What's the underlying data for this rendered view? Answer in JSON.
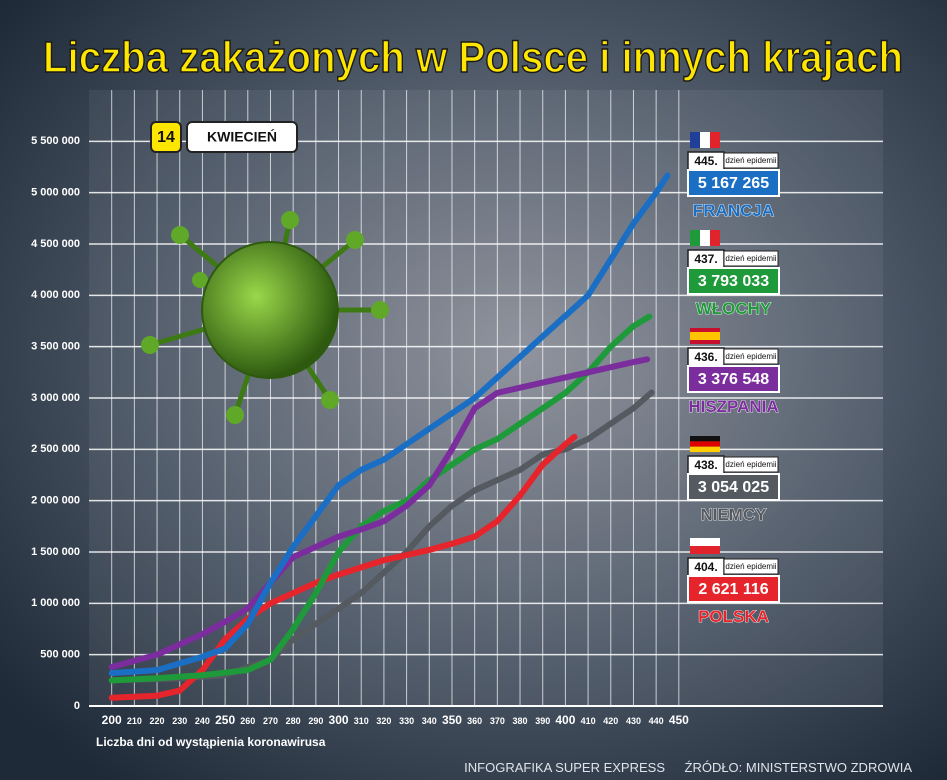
{
  "chart_data": {
    "type": "line",
    "title": "Liczba zakażonych w Polsce i innych krajach",
    "date_day": "14",
    "date_month": "KWIECIEŃ",
    "xlabel": "Liczba dni od wystąpienia koronawirusa",
    "day_caption": "dzień epidemii",
    "footer_left": "INFOGRAFIKA SUPER EXPRESS",
    "footer_right": "ŹRÓDŁO: MINISTERSTWO ZDROWIA",
    "xlim": [
      190,
      540
    ],
    "ylim": [
      0,
      6000000
    ],
    "xticks": [
      200,
      210,
      220,
      230,
      240,
      250,
      260,
      270,
      280,
      290,
      300,
      310,
      320,
      330,
      340,
      350,
      360,
      370,
      380,
      390,
      400,
      410,
      420,
      430,
      440,
      450
    ],
    "yticks": [
      0,
      {
        "value": 500000,
        "label": "500 000"
      },
      {
        "value": 1000000,
        "label": "1 000 000"
      },
      {
        "value": 1500000,
        "label": "1 500 000"
      },
      {
        "value": 2000000,
        "label": "2 000 000"
      },
      {
        "value": 2500000,
        "label": "2 500 000"
      },
      {
        "value": 3000000,
        "label": "3 000 000"
      },
      {
        "value": 3500000,
        "label": "3 500 000"
      },
      {
        "value": 4000000,
        "label": "4 000 000"
      },
      {
        "value": 4500000,
        "label": "4 500 000"
      },
      {
        "value": 5000000,
        "label": "5 000 000"
      },
      {
        "value": 5500000,
        "label": "5 500 000"
      }
    ],
    "grid": true,
    "series": [
      {
        "name": "FRANCJA",
        "color": "#1a6fc4",
        "day": "445.",
        "value_label": "5 167 265",
        "x": [
          200,
          220,
          240,
          250,
          260,
          270,
          280,
          290,
          300,
          310,
          320,
          330,
          340,
          350,
          360,
          370,
          380,
          390,
          400,
          410,
          420,
          430,
          440,
          445
        ],
        "values": [
          320000,
          350000,
          480000,
          560000,
          800000,
          1200000,
          1550000,
          1850000,
          2150000,
          2300000,
          2400000,
          2550000,
          2700000,
          2850000,
          3000000,
          3200000,
          3400000,
          3600000,
          3800000,
          4000000,
          4350000,
          4700000,
          5000000,
          5167265
        ]
      },
      {
        "name": "WŁOCHY",
        "color": "#1f9a3a",
        "day": "437.",
        "value_label": "3 793 033",
        "x": [
          200,
          220,
          240,
          260,
          270,
          280,
          290,
          300,
          310,
          320,
          330,
          340,
          350,
          360,
          370,
          380,
          390,
          400,
          410,
          420,
          430,
          437
        ],
        "values": [
          250000,
          270000,
          300000,
          350000,
          450000,
          750000,
          1100000,
          1500000,
          1750000,
          1900000,
          2000000,
          2200000,
          2350000,
          2500000,
          2600000,
          2750000,
          2900000,
          3050000,
          3250000,
          3500000,
          3700000,
          3793033
        ]
      },
      {
        "name": "HISZPANIA",
        "color": "#7b2d9e",
        "day": "436.",
        "value_label": "3 376 548",
        "x": [
          200,
          220,
          240,
          250,
          260,
          270,
          280,
          290,
          300,
          310,
          320,
          330,
          340,
          350,
          360,
          370,
          380,
          390,
          400,
          410,
          420,
          430,
          436
        ],
        "values": [
          380000,
          500000,
          700000,
          820000,
          950000,
          1200000,
          1450000,
          1550000,
          1650000,
          1720000,
          1800000,
          1950000,
          2150000,
          2500000,
          2900000,
          3050000,
          3100000,
          3150000,
          3200000,
          3250000,
          3300000,
          3350000,
          3376548
        ]
      },
      {
        "name": "NIEMCY",
        "color": "#555a60",
        "day": "438.",
        "value_label": "3 054 025",
        "x": [
          200,
          230,
          250,
          260,
          270,
          280,
          290,
          300,
          310,
          320,
          330,
          340,
          350,
          360,
          370,
          380,
          390,
          400,
          410,
          420,
          430,
          438
        ],
        "values": [
          250000,
          270000,
          300000,
          380000,
          450000,
          650000,
          800000,
          950000,
          1100000,
          1300000,
          1500000,
          1750000,
          1950000,
          2100000,
          2200000,
          2300000,
          2450000,
          2500000,
          2600000,
          2750000,
          2900000,
          3054025
        ]
      },
      {
        "name": "POLSKA",
        "color": "#e5242b",
        "day": "404.",
        "value_label": "2 621 116",
        "x": [
          200,
          220,
          230,
          240,
          250,
          260,
          270,
          280,
          290,
          300,
          310,
          320,
          330,
          340,
          350,
          360,
          370,
          380,
          390,
          400,
          404
        ],
        "values": [
          80000,
          100000,
          150000,
          350000,
          650000,
          850000,
          1000000,
          1100000,
          1200000,
          1280000,
          1350000,
          1420000,
          1470000,
          1520000,
          1580000,
          1650000,
          1800000,
          2050000,
          2350000,
          2550000,
          2621116
        ]
      }
    ]
  }
}
